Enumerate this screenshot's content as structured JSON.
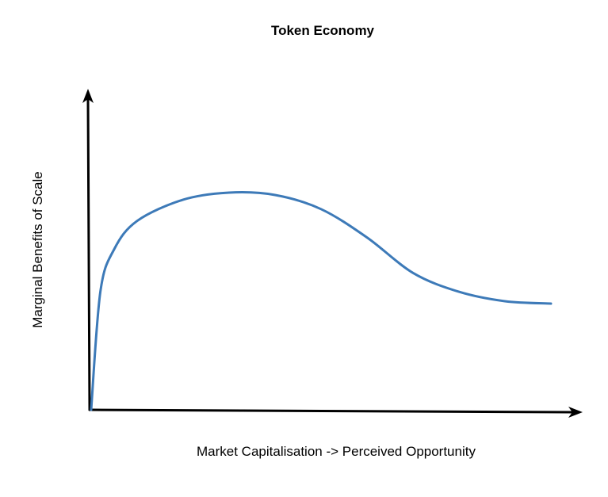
{
  "chart_data": {
    "type": "line",
    "title": "Token Economy",
    "xlabel": "Market Capitalisation -> Perceived Opportunity",
    "ylabel": "Marginal Benefits of Scale",
    "xlim": [
      0,
      100
    ],
    "ylim": [
      0,
      100
    ],
    "grid": false,
    "legend": "none",
    "series": [
      {
        "color": "#3d7ab8",
        "x": [
          0,
          2,
          5,
          10,
          20,
          30,
          40,
          50,
          60,
          70,
          80,
          90,
          100
        ],
        "y": [
          0,
          50,
          68,
          80,
          89,
          92,
          91,
          85,
          73,
          58,
          50,
          46,
          45
        ]
      }
    ]
  }
}
